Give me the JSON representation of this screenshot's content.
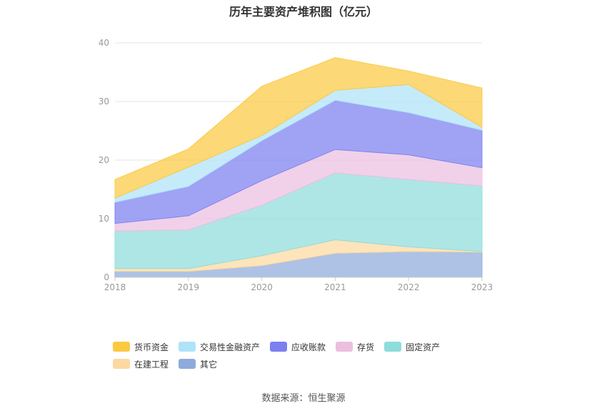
{
  "source_text": "数据来源：恒生聚源",
  "chart_data": {
    "type": "area",
    "title": "历年主要资产堆积图（亿元）",
    "xlabel": "",
    "ylabel": "",
    "categories": [
      "2018",
      "2019",
      "2020",
      "2021",
      "2022",
      "2023"
    ],
    "ylim": [
      0,
      40
    ],
    "yticks": [
      0,
      10,
      20,
      30,
      40
    ],
    "stacked": true,
    "grid": true,
    "legend_position": "bottom",
    "series": [
      {
        "name": "其它",
        "color": "#8fabdb",
        "values": [
          1.0,
          1.0,
          2.0,
          4.1,
          4.4,
          4.3
        ]
      },
      {
        "name": "在建工程",
        "color": "#fcd9a0",
        "values": [
          0.5,
          0.5,
          1.7,
          2.3,
          0.8,
          0.1
        ]
      },
      {
        "name": "固定资产",
        "color": "#8fdcdc",
        "values": [
          6.4,
          6.6,
          8.6,
          11.4,
          11.5,
          11.2
        ]
      },
      {
        "name": "存货",
        "color": "#ecbfe0",
        "values": [
          1.3,
          2.4,
          4.2,
          4.0,
          4.2,
          3.1
        ]
      },
      {
        "name": "应收账款",
        "color": "#7b7ff0",
        "values": [
          3.6,
          5.0,
          6.8,
          8.4,
          7.2,
          6.4
        ]
      },
      {
        "name": "交易性金融资产",
        "color": "#aee3fa",
        "values": [
          0.7,
          3.3,
          0.9,
          1.7,
          4.8,
          0.5
        ]
      },
      {
        "name": "货币资金",
        "color": "#fbc941",
        "values": [
          3.2,
          3.1,
          8.4,
          5.6,
          2.3,
          6.7
        ]
      }
    ],
    "legend_order": [
      "货币资金",
      "交易性金融资产",
      "应收账款",
      "存货",
      "固定资产",
      "在建工程",
      "其它"
    ]
  }
}
